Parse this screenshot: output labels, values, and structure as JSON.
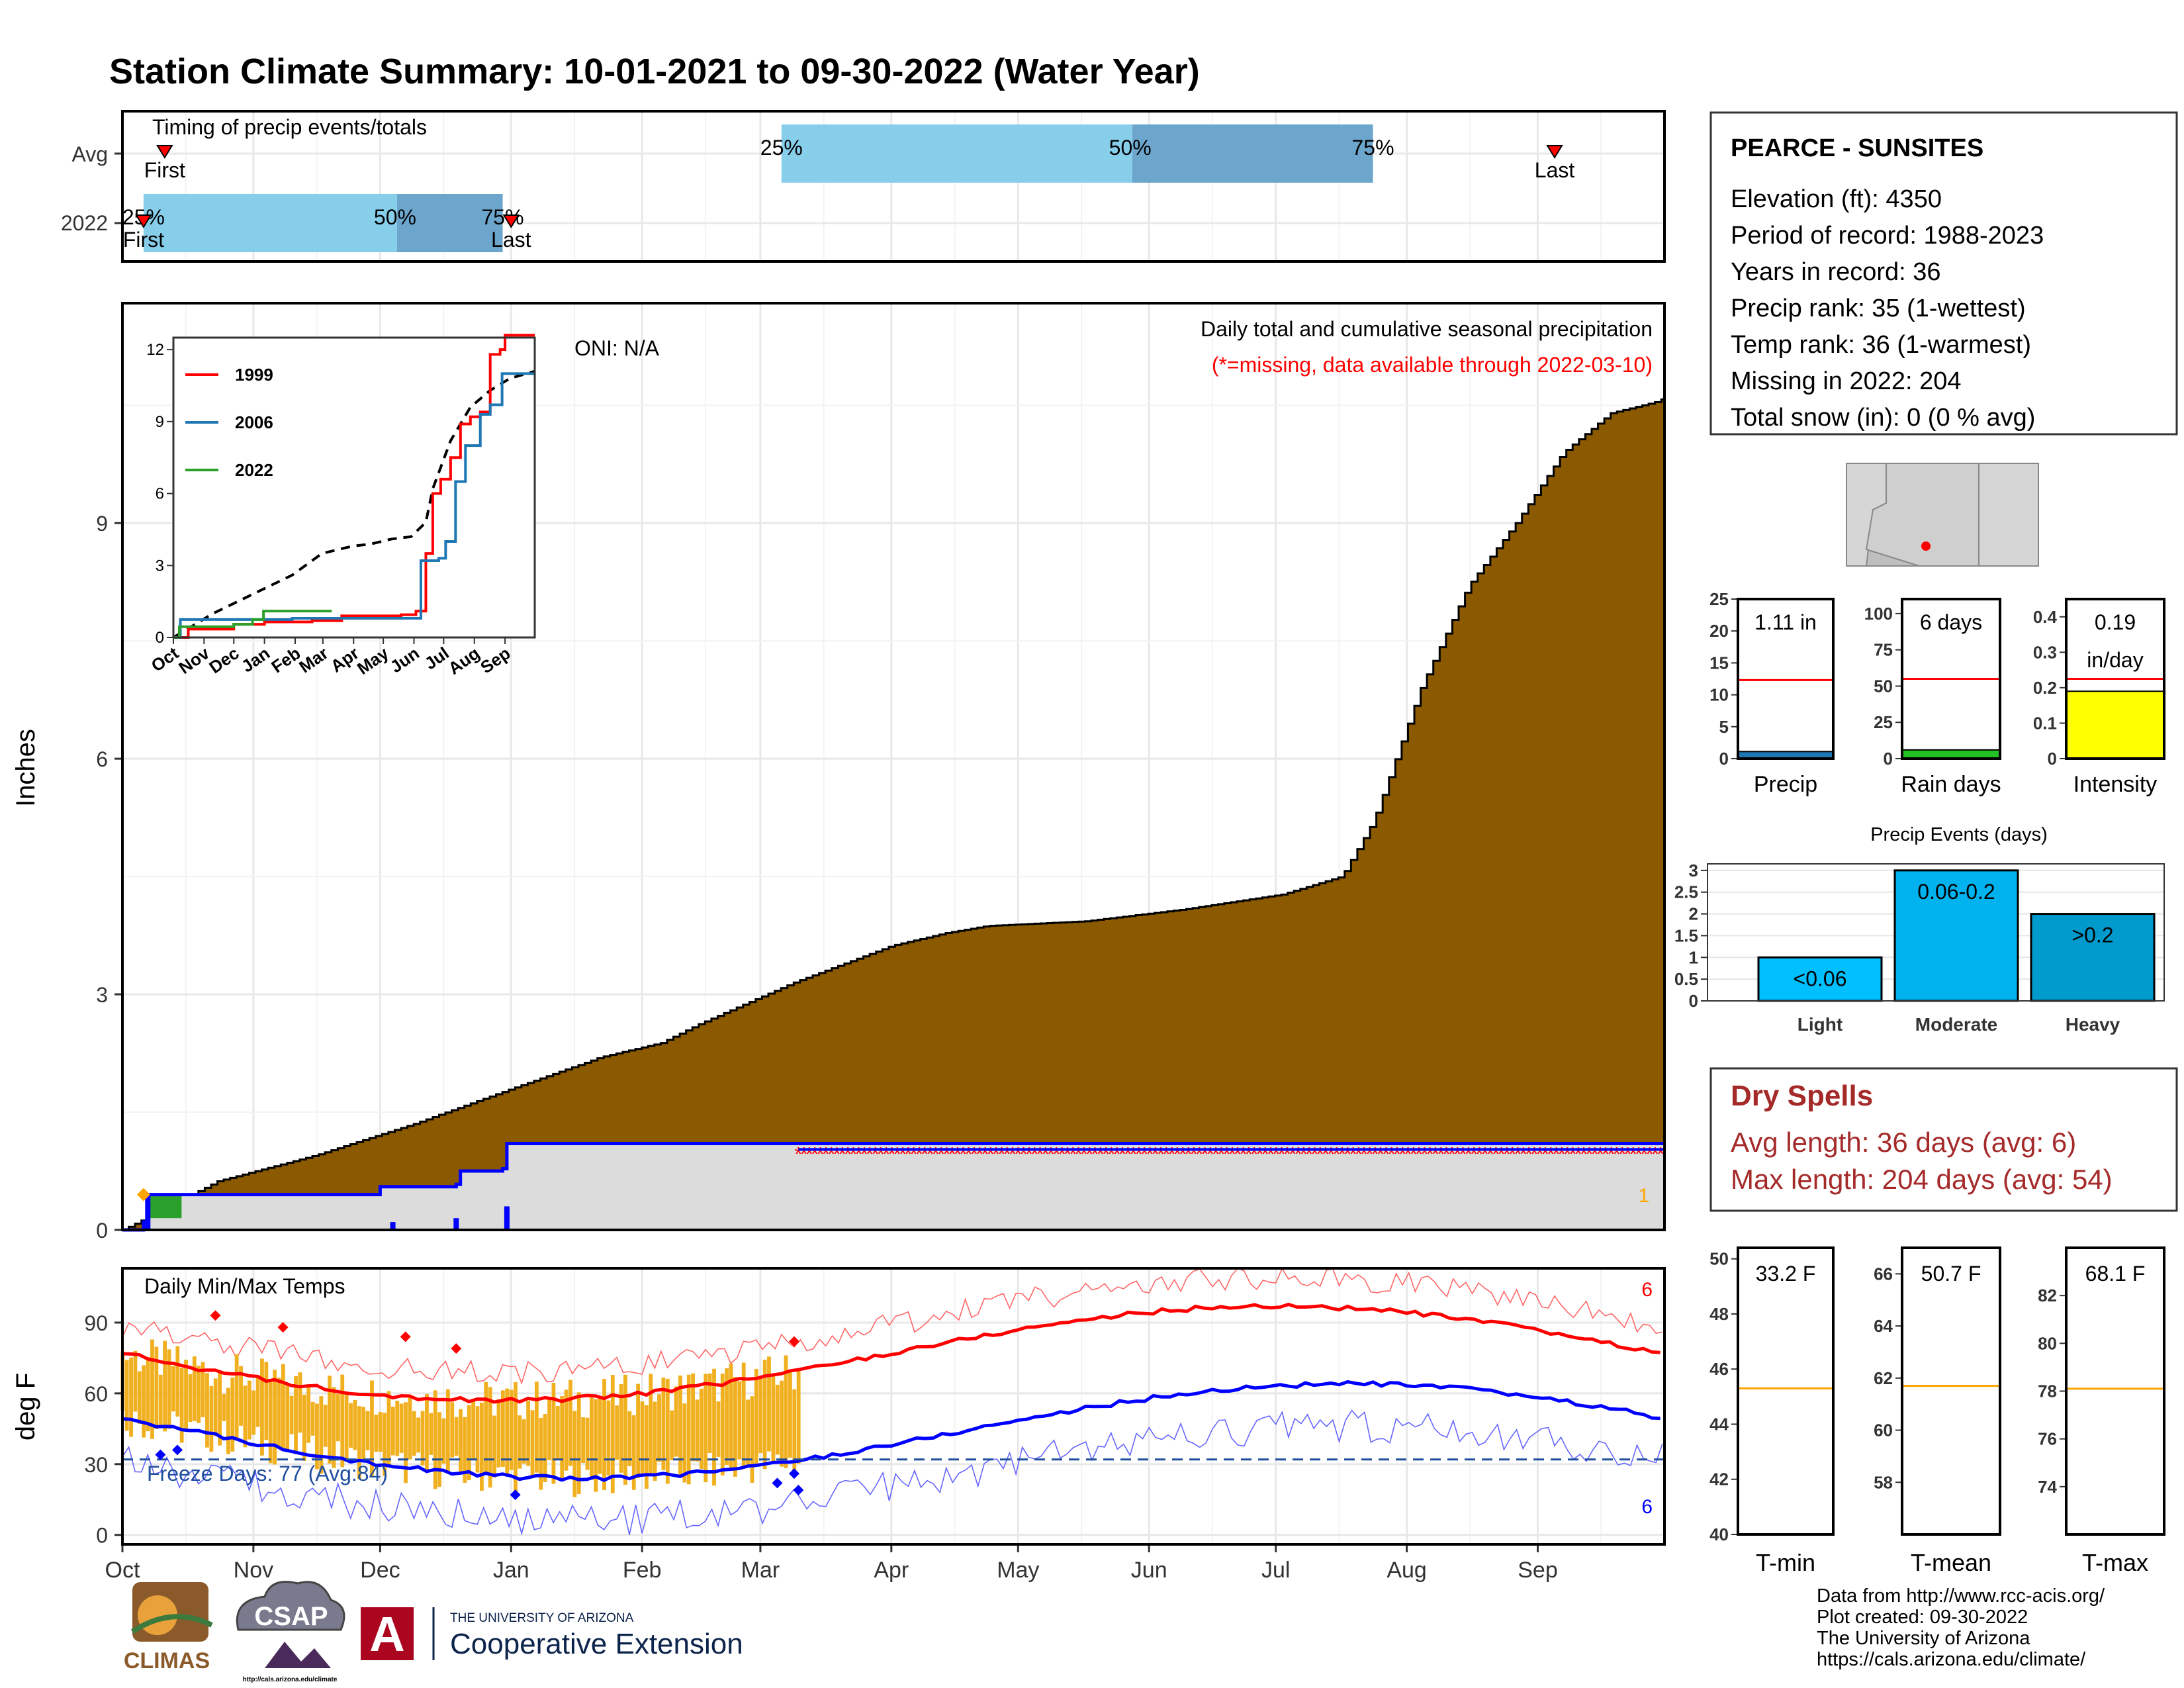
{
  "title": "Station Climate Summary: 10-01-2021 to 09-30-2022 (Water Year)",
  "colors": {
    "title": "#8b2500",
    "precip_fill": "#8b5a00",
    "light_blue": "#87ceeb",
    "mid_blue": "#6ca6cd",
    "avg_line": "#ff0000",
    "tmax": "#ff0000",
    "tmin": "#0000ff",
    "temp_bar": "#f0b020",
    "freeze": "#1f4e9e",
    "dry_spells": "#a52a2a",
    "cat_light": "#00bfff",
    "cat_moderate": "#00b2ee",
    "cat_heavy": "#009acd",
    "rain_green": "#22c322",
    "intensity_yellow": "#ffff00",
    "ref_orange": "#ffa500"
  },
  "timing": {
    "label": "Timing of precip events/totals",
    "rows": [
      "Avg",
      "2022"
    ],
    "avg": {
      "first_day": 10,
      "last_day": 339,
      "p25": 156,
      "p50": 239,
      "p75": 296
    },
    "y2022": {
      "first_day": 5,
      "last_day": 92,
      "p25": 5,
      "p50": 65,
      "p75": 90
    },
    "labels": {
      "p25": "25%",
      "p50": "50%",
      "p75": "75%",
      "first": "First",
      "last": "Last"
    }
  },
  "months": [
    "Oct",
    "Nov",
    "Dec",
    "Jan",
    "Feb",
    "Mar",
    "Apr",
    "May",
    "Jun",
    "Jul",
    "Aug",
    "Sep"
  ],
  "month_start_days": [
    0,
    31,
    61,
    92,
    123,
    151,
    182,
    212,
    243,
    273,
    304,
    335
  ],
  "precip": {
    "ylabel": "Inches",
    "yticks": [
      0,
      3,
      6,
      9
    ],
    "ylim": [
      0,
      11.8
    ],
    "oni": "ONI: N/A",
    "subtitle": "Daily total and cumulative seasonal precipitation",
    "missing_note": "(*=missing, data available through 2022-03-10)",
    "missing_count": "1",
    "avg_cumulative_pts": [
      [
        0,
        0
      ],
      [
        10,
        0.2
      ],
      [
        30,
        0.62
      ],
      [
        61,
        0.95
      ],
      [
        92,
        1.35
      ],
      [
        123,
        1.8
      ],
      [
        151,
        2.2
      ],
      [
        170,
        2.38
      ],
      [
        182,
        2.62
      ],
      [
        212,
        3.15
      ],
      [
        243,
        3.62
      ],
      [
        260,
        3.78
      ],
      [
        273,
        3.87
      ],
      [
        304,
        3.93
      ],
      [
        335,
        4.08
      ],
      [
        366,
        4.27
      ],
      [
        385,
        4.5
      ],
      [
        395,
        5.2
      ],
      [
        410,
        6.9
      ],
      [
        425,
        8.2
      ],
      [
        440,
        9.0
      ],
      [
        455,
        9.9
      ],
      [
        470,
        10.4
      ],
      [
        485,
        10.55
      ],
      [
        487,
        10.6
      ]
    ],
    "obs_cumulative_pts": [
      [
        0,
        0
      ],
      [
        5,
        0.1
      ],
      [
        6,
        0.45
      ],
      [
        60,
        0.45
      ],
      [
        61,
        0.55
      ],
      [
        79,
        0.58
      ],
      [
        80,
        0.75
      ],
      [
        90,
        0.78
      ],
      [
        91,
        1.1
      ],
      [
        160,
        1.1
      ]
    ],
    "daily_bars": [
      [
        6,
        0.45
      ],
      [
        64,
        0.1
      ],
      [
        79,
        0.15
      ],
      [
        91,
        0.3
      ]
    ],
    "missing_start_day": 160,
    "missing_end_day": 365,
    "missing_level": 1.0
  },
  "inset": {
    "yticks": [
      0,
      3,
      6,
      9,
      12
    ],
    "ylim": [
      0,
      12.5
    ],
    "series": [
      {
        "name": "1999",
        "color": "#ff0000",
        "pts": [
          [
            0,
            0
          ],
          [
            15,
            0.35
          ],
          [
            61,
            0.55
          ],
          [
            92,
            0.65
          ],
          [
            140,
            0.7
          ],
          [
            170,
            0.9
          ],
          [
            230,
            0.95
          ],
          [
            245,
            1.1
          ],
          [
            255,
            3.5
          ],
          [
            262,
            6.0
          ],
          [
            270,
            6.6
          ],
          [
            280,
            7.5
          ],
          [
            290,
            8.9
          ],
          [
            300,
            9.2
          ],
          [
            310,
            9.4
          ],
          [
            320,
            11.8
          ],
          [
            330,
            12.0
          ],
          [
            335,
            12.6
          ],
          [
            365,
            12.6
          ]
        ]
      },
      {
        "name": "2006",
        "color": "#1f77b4",
        "pts": [
          [
            0,
            0
          ],
          [
            7,
            0.75
          ],
          [
            61,
            0.75
          ],
          [
            92,
            0.75
          ],
          [
            120,
            0.8
          ],
          [
            150,
            0.8
          ],
          [
            200,
            0.8
          ],
          [
            245,
            0.8
          ],
          [
            250,
            3.2
          ],
          [
            268,
            3.3
          ],
          [
            275,
            4.0
          ],
          [
            285,
            6.5
          ],
          [
            295,
            8.0
          ],
          [
            310,
            9.3
          ],
          [
            320,
            9.7
          ],
          [
            332,
            11.0
          ],
          [
            365,
            11.0
          ]
        ]
      },
      {
        "name": "2022",
        "color": "#2ca02c",
        "pts": [
          [
            0,
            0
          ],
          [
            6,
            0.45
          ],
          [
            61,
            0.55
          ],
          [
            80,
            0.75
          ],
          [
            91,
            1.1
          ],
          [
            160,
            1.1
          ]
        ]
      }
    ],
    "avg_pts": [
      [
        0,
        0
      ],
      [
        40,
        1.0
      ],
      [
        80,
        1.8
      ],
      [
        120,
        2.6
      ],
      [
        150,
        3.5
      ],
      [
        180,
        3.8
      ],
      [
        200,
        3.9
      ],
      [
        220,
        4.1
      ],
      [
        240,
        4.2
      ],
      [
        255,
        4.8
      ],
      [
        262,
        6.2
      ],
      [
        280,
        8.2
      ],
      [
        300,
        9.6
      ],
      [
        320,
        10.3
      ],
      [
        340,
        10.8
      ],
      [
        365,
        11.1
      ]
    ]
  },
  "temps": {
    "ylabel": "deg F",
    "yticks": [
      0,
      30,
      60,
      90
    ],
    "ylim": [
      -4,
      113
    ],
    "label": "Daily Min/Max Temps",
    "freeze": "Freeze Days: 77 (Avg:84)",
    "freeze_level": 32,
    "obs_end_day": 160,
    "count_top": "6",
    "count_bottom": "6"
  },
  "station": {
    "name": "PEARCE - SUNSITES",
    "lines": [
      "Elevation (ft): 4350",
      "Period of record: 1988-2023",
      "Years in record: 36",
      "Precip rank: 35 (1-wettest)",
      "Temp rank: 36 (1-warmest)",
      "Missing in 2022: 204",
      "Total snow (in): 0 (0 % avg)"
    ]
  },
  "mini_bars": [
    {
      "name": "Precip",
      "label": "1.11 in",
      "value": 1.11,
      "avg": 12.3,
      "ylim": [
        0,
        25
      ],
      "ticks": [
        0,
        5,
        10,
        15,
        20,
        25
      ],
      "color": "#1f77b4"
    },
    {
      "name": "Rain days",
      "label": "6 days",
      "value": 6,
      "avg": 55,
      "ylim": [
        0,
        110
      ],
      "ticks": [
        0,
        25,
        50,
        75,
        100
      ],
      "color": "#22c322"
    },
    {
      "name": "Intensity",
      "label": "0.19",
      "label2": "in/day",
      "value": 0.19,
      "avg": 0.225,
      "ylim": [
        0,
        0.45
      ],
      "ticks": [
        0.0,
        0.1,
        0.2,
        0.3,
        0.4
      ],
      "color": "#ffff00"
    }
  ],
  "events": {
    "title": "Precip Events (days)",
    "yticks": [
      0.0,
      0.5,
      1.0,
      1.5,
      2.0,
      2.5,
      3.0
    ],
    "ylim": [
      0,
      3.15
    ],
    "categories": [
      "Light",
      "Moderate",
      "Heavy"
    ],
    "values": [
      1,
      3,
      2
    ],
    "labels": [
      "<0.06",
      "0.06-0.2",
      ">0.2"
    ]
  },
  "dry_spells": {
    "title": "Dry Spells",
    "avg": "Avg length: 36 days (avg: 6)",
    "max": "Max length: 204 days (avg: 54)"
  },
  "temp_bars": [
    {
      "name": "T-min",
      "label": "33.2 F",
      "avg": 45.3,
      "ylim": [
        40,
        50.4
      ],
      "ticks": [
        40,
        42,
        44,
        46,
        48,
        50
      ]
    },
    {
      "name": "T-mean",
      "label": "50.7 F",
      "avg": 61.7,
      "ylim": [
        56,
        67
      ],
      "ticks": [
        58,
        60,
        62,
        64,
        66
      ]
    },
    {
      "name": "T-max",
      "label": "68.1 F",
      "avg": 78.1,
      "ylim": [
        72,
        84
      ],
      "ticks": [
        74,
        76,
        78,
        80,
        82
      ]
    }
  ],
  "footer": {
    "lines": [
      "Data from http://www.rcc-acis.org/",
      "Plot created: 09-30-2022",
      "The University of Arizona",
      "https://cals.arizona.edu/climate/"
    ],
    "climas": "CLIMAS",
    "csap": "CSAP",
    "csap_url": "http://cals.arizona.edu/climate",
    "ua_small": "THE UNIVERSITY OF ARIZONA",
    "ua_big": "Cooperative Extension",
    "ua_letter": "A"
  }
}
